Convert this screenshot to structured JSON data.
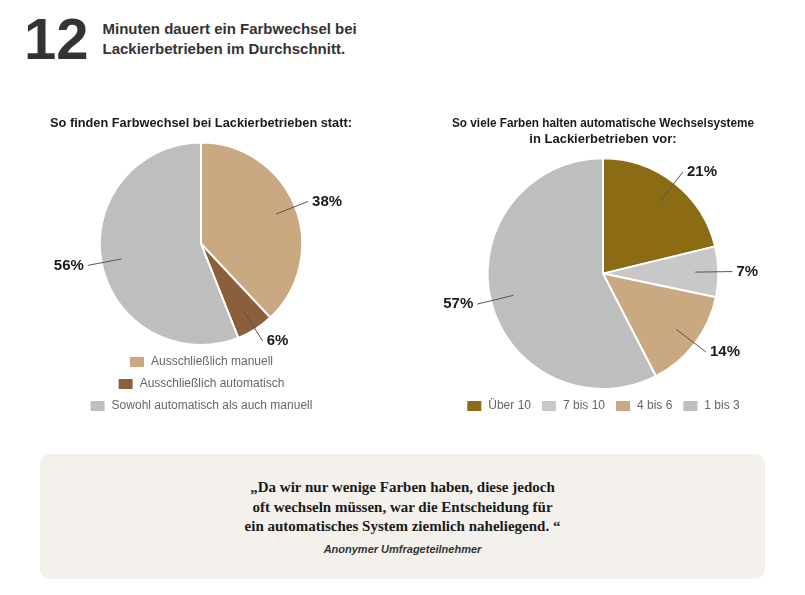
{
  "chart_data": [
    {
      "type": "pie",
      "title": "So finden Farbwechsel bei Lackierbetrieben statt:",
      "categories": [
        "Ausschließlich manuell",
        "Ausschließlich automatisch",
        "Sowohl automatisch als auch manuell"
      ],
      "values": [
        38,
        6,
        56
      ],
      "value_labels": [
        "38%",
        "6%",
        "56%"
      ],
      "colors": [
        "#C9A882",
        "#8B5E3C",
        "#BEBEBE"
      ],
      "data_labels": true,
      "legend": "bottom",
      "annotations": [
        "12",
        "Minuten dauert ein Farbwechsel bei",
        "Lackierbetrieben im Durchschnitt."
      ]
    },
    {
      "type": "pie",
      "title": [
        "So viele Farben halten automatische Wechselsysteme",
        "in Lackierbetrieben vor:"
      ],
      "categories": [
        "Über 10",
        "7 bis 10",
        "4 bis 6",
        "1 bis 3"
      ],
      "values": [
        21,
        7,
        14,
        57
      ],
      "value_labels": [
        "21%",
        "7%",
        "14%",
        "57%"
      ],
      "colors": [
        "#8B6B14",
        "#C8C8C8",
        "#C9A882",
        "#BEBEBE"
      ],
      "data_labels": true,
      "legend": "bottom",
      "annotations": [
        "„Da wir nur wenige Farben haben, diese jedoch\noft wechseln müssen, war die Entscheidung für\nein automatisches System ziemlich naheliegend. “",
        "Anonymer Umfrageteilnehmer"
      ]
    }
  ]
}
